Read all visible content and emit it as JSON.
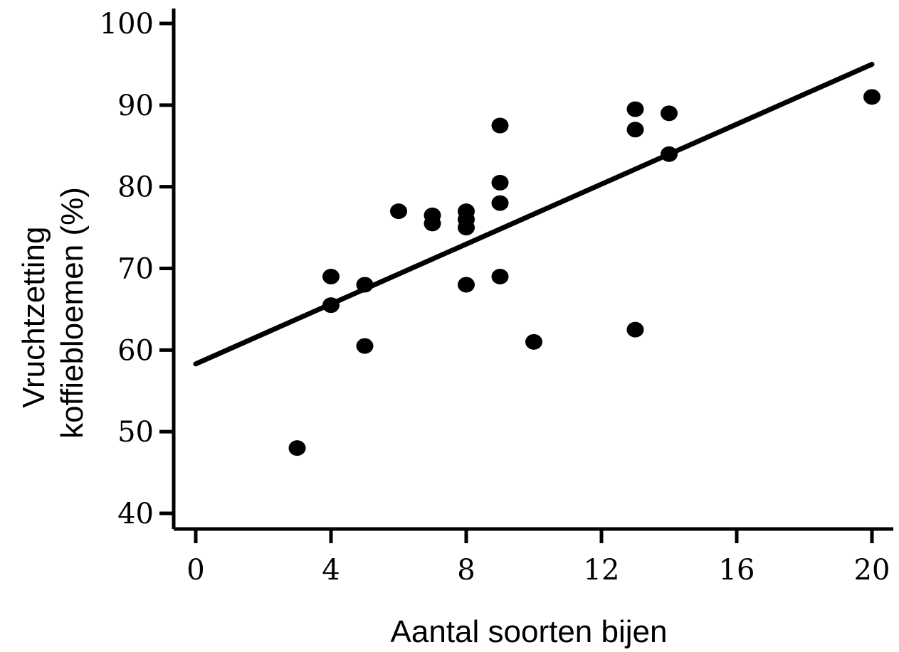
{
  "chart_data": {
    "type": "scatter",
    "title": "",
    "xlabel": "Aantal soorten bijen",
    "ylabel_lines": [
      "Vruchtzetting",
      "koffiebloemen (%)"
    ],
    "xlim": [
      0,
      20
    ],
    "ylim": [
      40,
      100
    ],
    "x_ticks": [
      "0",
      "4",
      "8",
      "12",
      "16",
      "20"
    ],
    "y_ticks": [
      "40",
      "50",
      "60",
      "70",
      "80",
      "90",
      "100"
    ],
    "grid": false,
    "points": [
      {
        "x": 3,
        "y": 48
      },
      {
        "x": 4,
        "y": 69
      },
      {
        "x": 4,
        "y": 65.5
      },
      {
        "x": 5,
        "y": 68
      },
      {
        "x": 5,
        "y": 60.5
      },
      {
        "x": 6,
        "y": 77
      },
      {
        "x": 7,
        "y": 76.5
      },
      {
        "x": 7,
        "y": 75.5
      },
      {
        "x": 8,
        "y": 77
      },
      {
        "x": 8,
        "y": 76
      },
      {
        "x": 8,
        "y": 75
      },
      {
        "x": 8,
        "y": 68
      },
      {
        "x": 9,
        "y": 87.5
      },
      {
        "x": 9,
        "y": 80.5
      },
      {
        "x": 9,
        "y": 78
      },
      {
        "x": 9,
        "y": 69
      },
      {
        "x": 10,
        "y": 61
      },
      {
        "x": 13,
        "y": 89.5
      },
      {
        "x": 13,
        "y": 87
      },
      {
        "x": 13,
        "y": 62.5
      },
      {
        "x": 14,
        "y": 89
      },
      {
        "x": 14,
        "y": 84
      },
      {
        "x": 20,
        "y": 91
      }
    ],
    "trendline": {
      "x": [
        0,
        20
      ],
      "y": [
        58.3,
        95
      ]
    },
    "color": "#000000"
  }
}
